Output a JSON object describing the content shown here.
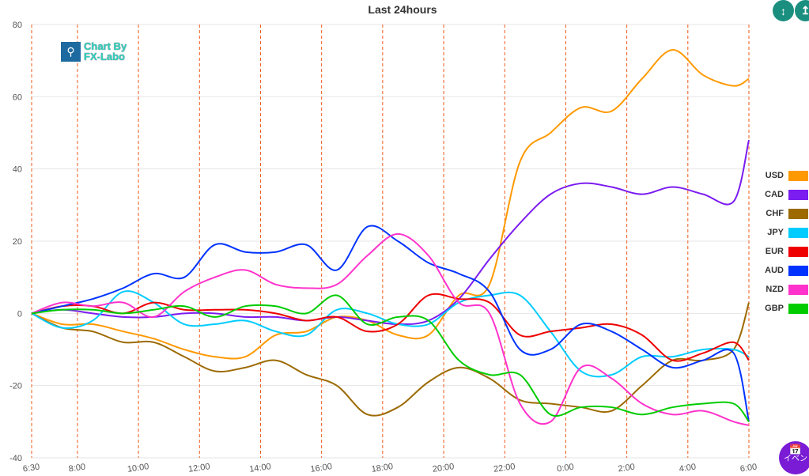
{
  "chart_data": {
    "type": "line",
    "title": "Last 24hours",
    "xlabel": "",
    "ylabel": "",
    "ylim": [
      -40,
      80
    ],
    "yticks": [
      80,
      60,
      40,
      20,
      0,
      -20,
      -40
    ],
    "xticks": [
      "6:30",
      "8:00",
      "10:00",
      "12:00",
      "14:00",
      "16:00",
      "18:00",
      "20:00",
      "22:00",
      "0:00",
      "2:00",
      "4:00",
      "6:00"
    ],
    "grid": true,
    "legend": "right",
    "x": [
      "6:30",
      "7:30",
      "8:30",
      "9:30",
      "10:30",
      "11:30",
      "12:30",
      "13:30",
      "14:30",
      "15:30",
      "16:30",
      "17:30",
      "18:30",
      "19:30",
      "20:30",
      "21:30",
      "22:30",
      "23:30",
      "0:30",
      "1:30",
      "2:30",
      "3:30",
      "4:30",
      "5:30",
      "6:00"
    ],
    "series": [
      {
        "name": "USD",
        "color": "#ff9900",
        "values": [
          0,
          -3,
          -3,
          -5,
          -7,
          -10,
          -12,
          -12,
          -6,
          -5,
          -1,
          -2,
          -6,
          -6,
          5,
          8,
          42,
          50,
          57,
          56,
          65,
          73,
          66,
          63,
          65
        ]
      },
      {
        "name": "CAD",
        "color": "#7b1cf0",
        "values": [
          0,
          1,
          0,
          -1,
          -1,
          0,
          0,
          -1,
          -1,
          -2,
          -1,
          -2,
          -3,
          -2,
          4,
          15,
          25,
          33,
          36,
          35,
          33,
          35,
          33,
          31,
          48
        ]
      },
      {
        "name": "CHF",
        "color": "#9c6a00",
        "values": [
          0,
          -4,
          -5,
          -8,
          -8,
          -12,
          -16,
          -15,
          -13,
          -17,
          -20,
          -28,
          -26,
          -19,
          -15,
          -18,
          -24,
          -25,
          -26,
          -27,
          -20,
          -13,
          -13,
          -10,
          3
        ]
      },
      {
        "name": "JPY",
        "color": "#00ccff",
        "values": [
          0,
          -4,
          -2,
          6,
          3,
          -3,
          -3,
          -2,
          -5,
          -6,
          1,
          0,
          -3,
          -3,
          3,
          5,
          5,
          -5,
          -16,
          -17,
          -12,
          -12,
          -10,
          -10,
          -12
        ]
      },
      {
        "name": "EUR",
        "color": "#ee0000",
        "values": [
          0,
          2,
          2,
          0,
          3,
          1,
          1,
          1,
          0,
          -2,
          -1,
          -5,
          -3,
          5,
          4,
          3,
          -6,
          -5,
          -4,
          -3,
          -6,
          -13,
          -11,
          -8,
          -13
        ]
      },
      {
        "name": "AUD",
        "color": "#0033ff",
        "values": [
          0,
          2,
          4,
          7,
          11,
          10,
          19,
          17,
          17,
          19,
          12,
          24,
          20,
          14,
          11,
          6,
          -10,
          -10,
          -3,
          -5,
          -10,
          -15,
          -13,
          -11,
          -30
        ]
      },
      {
        "name": "NZD",
        "color": "#ff33cc",
        "values": [
          0,
          3,
          2,
          3,
          -1,
          6,
          10,
          12,
          8,
          7,
          8,
          16,
          22,
          16,
          3,
          0,
          -25,
          -30,
          -15,
          -18,
          -25,
          -28,
          -27,
          -30,
          -31
        ]
      },
      {
        "name": "GBP",
        "color": "#00cc00",
        "values": [
          0,
          1,
          1,
          0,
          1,
          2,
          -1,
          2,
          2,
          0,
          5,
          -3,
          -1,
          -2,
          -13,
          -17,
          -17,
          -28,
          -26,
          -26,
          -28,
          -26,
          -25,
          -25,
          -30
        ]
      }
    ]
  },
  "logo": {
    "text_line1": "Chart By",
    "text_line2": "FX-Labo"
  },
  "buttons": {
    "collapse_icon": "compress-vertical-icon",
    "expand_icon": "expand-vertical-icon",
    "event_label": "イベン",
    "event_icon": "calendar-icon"
  }
}
